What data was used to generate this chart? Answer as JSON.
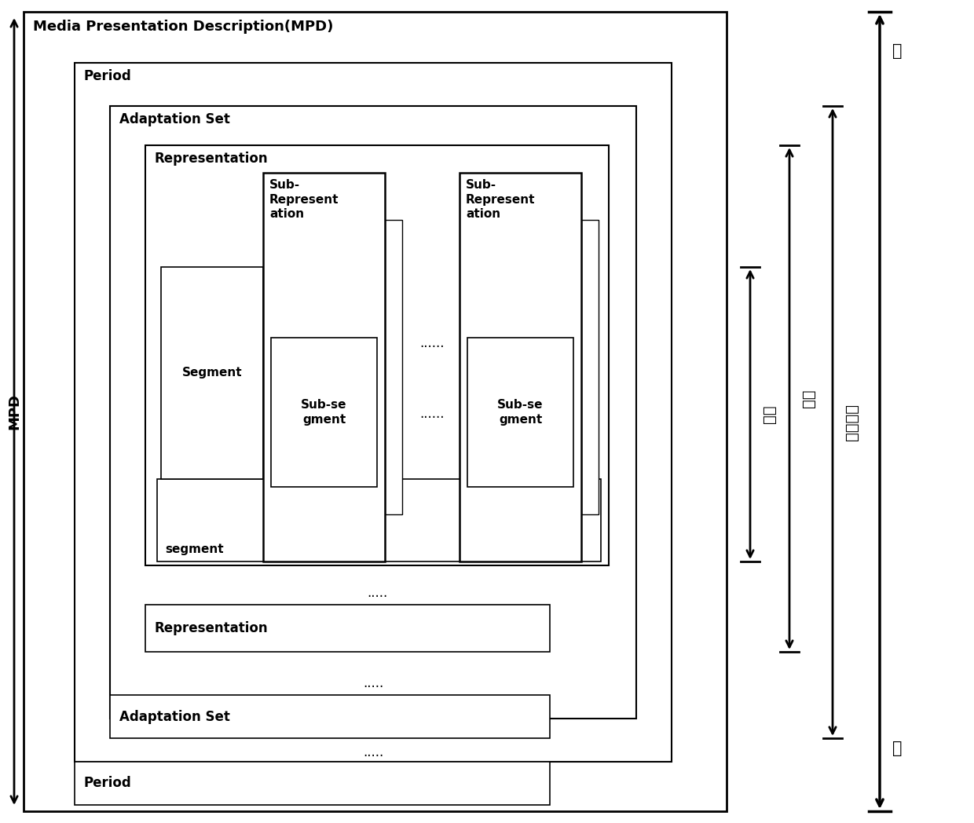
{
  "bg_color": "#ffffff",
  "line_color": "#000000",
  "text_color": "#000000",
  "labels": {
    "mpd_title": "Media Presentation Description(MPD)",
    "period1": "Period",
    "adaptation_set1": "Adaptation Set",
    "representation1": "Representation",
    "segment_label": "Segment",
    "sub_rep_label": "Sub-\nRepresent\nation",
    "sub_seg_label": "Sub-se\ngment",
    "dots_subrep": "......",
    "dots_subseg": "......",
    "segment_bottom": "segment",
    "dots_repr": ".....",
    "representation2": "Representation",
    "dots_adapt": ".....",
    "adaptation_set2": "Adaptation Set",
    "dots_period": ".....",
    "period2": "Period",
    "arrow1_label": "切片",
    "arrow2_label": "表示",
    "arrow3_label": "自适应集",
    "arrow4_top": "时",
    "arrow4_bottom": "期",
    "mpd_left": "MPD"
  }
}
